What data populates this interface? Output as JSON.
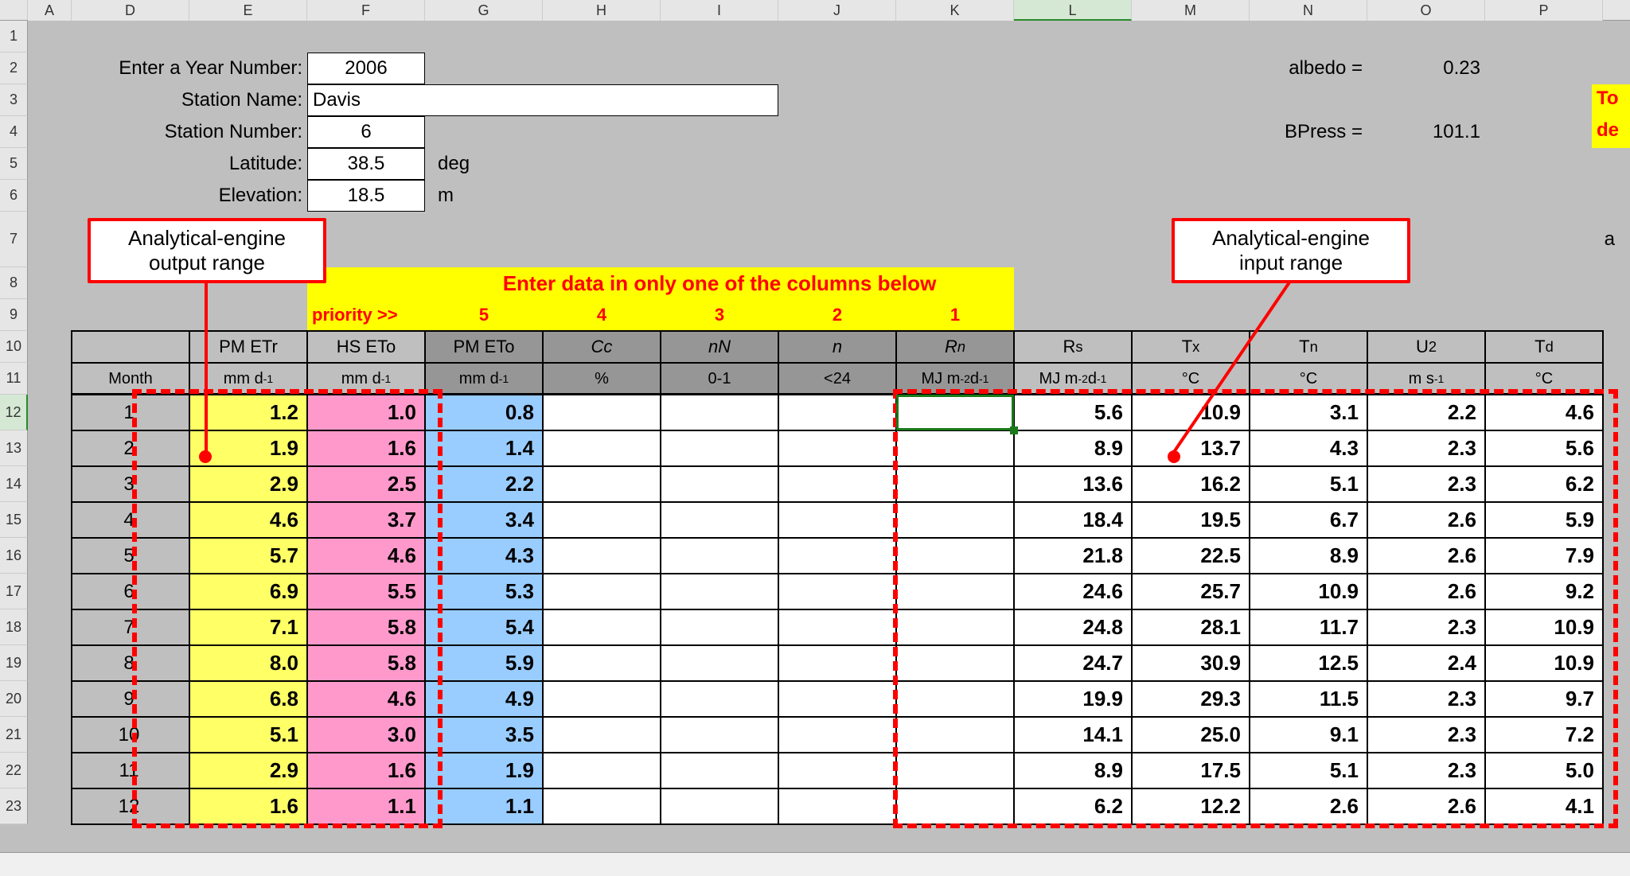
{
  "columns": {
    "letters": [
      "A",
      "D",
      "E",
      "F",
      "G",
      "H",
      "I",
      "J",
      "K",
      "L",
      "M",
      "N",
      "O",
      "P"
    ],
    "widths": [
      55,
      148,
      148,
      148,
      148,
      148,
      148,
      148,
      148,
      148,
      148,
      148,
      148,
      148
    ],
    "selected_index": 9
  },
  "rows": {
    "numbers": [
      "1",
      "2",
      "3",
      "4",
      "5",
      "6",
      "7",
      "8",
      "9",
      "10",
      "11",
      "12",
      "13",
      "14",
      "15",
      "16",
      "17",
      "18",
      "19",
      "20",
      "21",
      "22",
      "23"
    ],
    "heights": [
      40,
      40,
      40,
      40,
      40,
      40,
      70,
      40,
      40,
      40,
      40,
      45,
      45,
      45,
      45,
      45,
      45,
      45,
      45,
      45,
      45,
      45,
      45
    ],
    "selected_index": 11
  },
  "inputs": {
    "year_label": "Enter a Year Number:",
    "year_value": "2006",
    "station_name_label": "Station Name:",
    "station_name_value": "Davis",
    "station_num_label": "Station Number:",
    "station_num_value": "6",
    "latitude_label": "Latitude:",
    "latitude_value": "38.5",
    "latitude_unit": "deg",
    "elevation_label": "Elevation:",
    "elevation_value": "18.5",
    "elevation_unit": "m"
  },
  "top_right": {
    "albedo_label": "albedo =",
    "albedo_value": "0.23",
    "bpress_label": "BPress =",
    "bpress_value": "101.1",
    "note_line1": "To",
    "note_line2": "de",
    "row7_a": "a"
  },
  "banner": {
    "text": "Enter data in only one of the columns below",
    "priority_label": "priority >>",
    "priorities": [
      "5",
      "4",
      "3",
      "2",
      "1"
    ]
  },
  "headers": {
    "row10": [
      "",
      "PM ETr",
      "HS ETo",
      "PM ETo",
      "Cc",
      "nN",
      "n",
      "Rₙ",
      "Rₛ",
      "Tₓ",
      "Tₙ",
      "U₂",
      "T_d"
    ],
    "row11": [
      "Month",
      "mm d⁻¹",
      "mm d⁻¹",
      "mm d⁻¹",
      "%",
      "0-1",
      "<24",
      "MJ m⁻²d⁻¹",
      "MJ m⁻²d⁻¹",
      "°C",
      "°C",
      "m s⁻¹",
      "°C"
    ],
    "italic_cols": [
      4,
      5,
      6,
      7
    ]
  },
  "table": {
    "months": [
      "1",
      "2",
      "3",
      "4",
      "5",
      "6",
      "7",
      "8",
      "9",
      "10",
      "11",
      "12"
    ],
    "pm_etr": [
      "1.2",
      "1.9",
      "2.9",
      "4.6",
      "5.7",
      "6.9",
      "7.1",
      "8.0",
      "6.8",
      "5.1",
      "2.9",
      "1.6"
    ],
    "hs_eto": [
      "1.0",
      "1.6",
      "2.5",
      "3.7",
      "4.6",
      "5.5",
      "5.8",
      "5.8",
      "4.6",
      "3.0",
      "1.6",
      "1.1"
    ],
    "pm_eto": [
      "0.8",
      "1.4",
      "2.2",
      "3.4",
      "4.3",
      "5.3",
      "5.4",
      "5.9",
      "4.9",
      "3.5",
      "1.9",
      "1.1"
    ],
    "rs": [
      "5.6",
      "8.9",
      "13.6",
      "18.4",
      "21.8",
      "24.6",
      "24.8",
      "24.7",
      "19.9",
      "14.1",
      "8.9",
      "6.2"
    ],
    "tx": [
      "10.9",
      "13.7",
      "16.2",
      "19.5",
      "22.5",
      "25.7",
      "28.1",
      "30.9",
      "29.3",
      "25.0",
      "17.5",
      "12.2"
    ],
    "tn": [
      "3.1",
      "4.3",
      "5.1",
      "6.7",
      "8.9",
      "10.9",
      "11.7",
      "12.5",
      "11.5",
      "9.1",
      "5.1",
      "2.6"
    ],
    "u2": [
      "2.2",
      "2.3",
      "2.3",
      "2.6",
      "2.6",
      "2.6",
      "2.3",
      "2.4",
      "2.3",
      "2.3",
      "2.3",
      "2.6"
    ],
    "td": [
      "4.6",
      "5.6",
      "6.2",
      "5.9",
      "7.9",
      "9.2",
      "10.9",
      "10.9",
      "9.7",
      "7.2",
      "5.0",
      "4.1"
    ]
  },
  "callouts": {
    "output": {
      "line1": "Analytical-engine",
      "line2": "output range"
    },
    "input": {
      "line1": "Analytical-engine",
      "line2": "input range"
    }
  },
  "colors": {
    "grid_bg": "#bfbfbf",
    "yellow": "#ffff00",
    "yellow_col": "#ffff66",
    "pink_col": "#ff99cc",
    "blue_col": "#99ccff",
    "dark_hdr": "#969696",
    "red": "#ff0000",
    "sel_green": "#1a7a1a"
  }
}
